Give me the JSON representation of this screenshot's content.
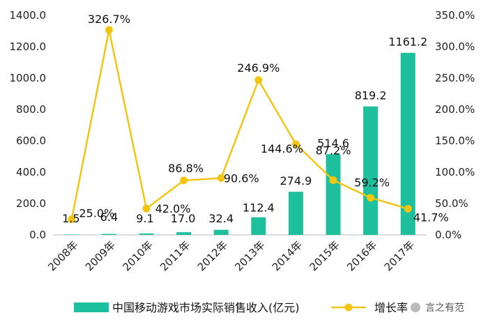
{
  "chart_data": {
    "type": "bar",
    "title": "",
    "categories": [
      "2008年",
      "2009年",
      "2010年",
      "2011年",
      "2012年",
      "2013年",
      "2014年",
      "2015年",
      "2016年",
      "2017年"
    ],
    "series": [
      {
        "name": "中国移动游戏市场实际销售收入(亿元)",
        "type": "bar",
        "axis": "left",
        "color": "#1dbf9c",
        "values": [
          1.5,
          6.4,
          9.1,
          17.0,
          32.4,
          112.4,
          274.9,
          514.6,
          819.2,
          1161.2
        ],
        "labels": [
          "1.5",
          "6.4",
          "9.1",
          "17.0",
          "32.4",
          "112.4",
          "274.9",
          "514.6",
          "819.2",
          "1161.2"
        ]
      },
      {
        "name": "增长率",
        "type": "line",
        "axis": "right",
        "color": "#f2c513",
        "values": [
          25.0,
          326.7,
          42.0,
          86.8,
          90.6,
          246.9,
          144.6,
          87.2,
          59.2,
          41.7
        ],
        "labels": [
          "25.0%",
          "326.7%",
          "42.0%",
          "86.8%",
          "90.6%",
          "246.9%",
          "144.6%",
          "87.2%",
          "59.2%",
          "41.7%"
        ]
      }
    ],
    "y_left": {
      "min": 0,
      "max": 1400,
      "ticks": [
        "0.0",
        "200.0",
        "400.0",
        "600.0",
        "800.0",
        "1000.0",
        "1200.0",
        "1400.0"
      ]
    },
    "y_right": {
      "min": 0,
      "max": 350,
      "ticks": [
        "0.0%",
        "50.0%",
        "100.0%",
        "150.0%",
        "200.0%",
        "250.0%",
        "300.0%",
        "350.0%"
      ]
    },
    "grid": false,
    "legend": "bottom"
  },
  "legend_labels": {
    "bars": "中国移动游戏市场实际销售收入(亿元)",
    "line": "增长率"
  },
  "watermark": "言之有范"
}
